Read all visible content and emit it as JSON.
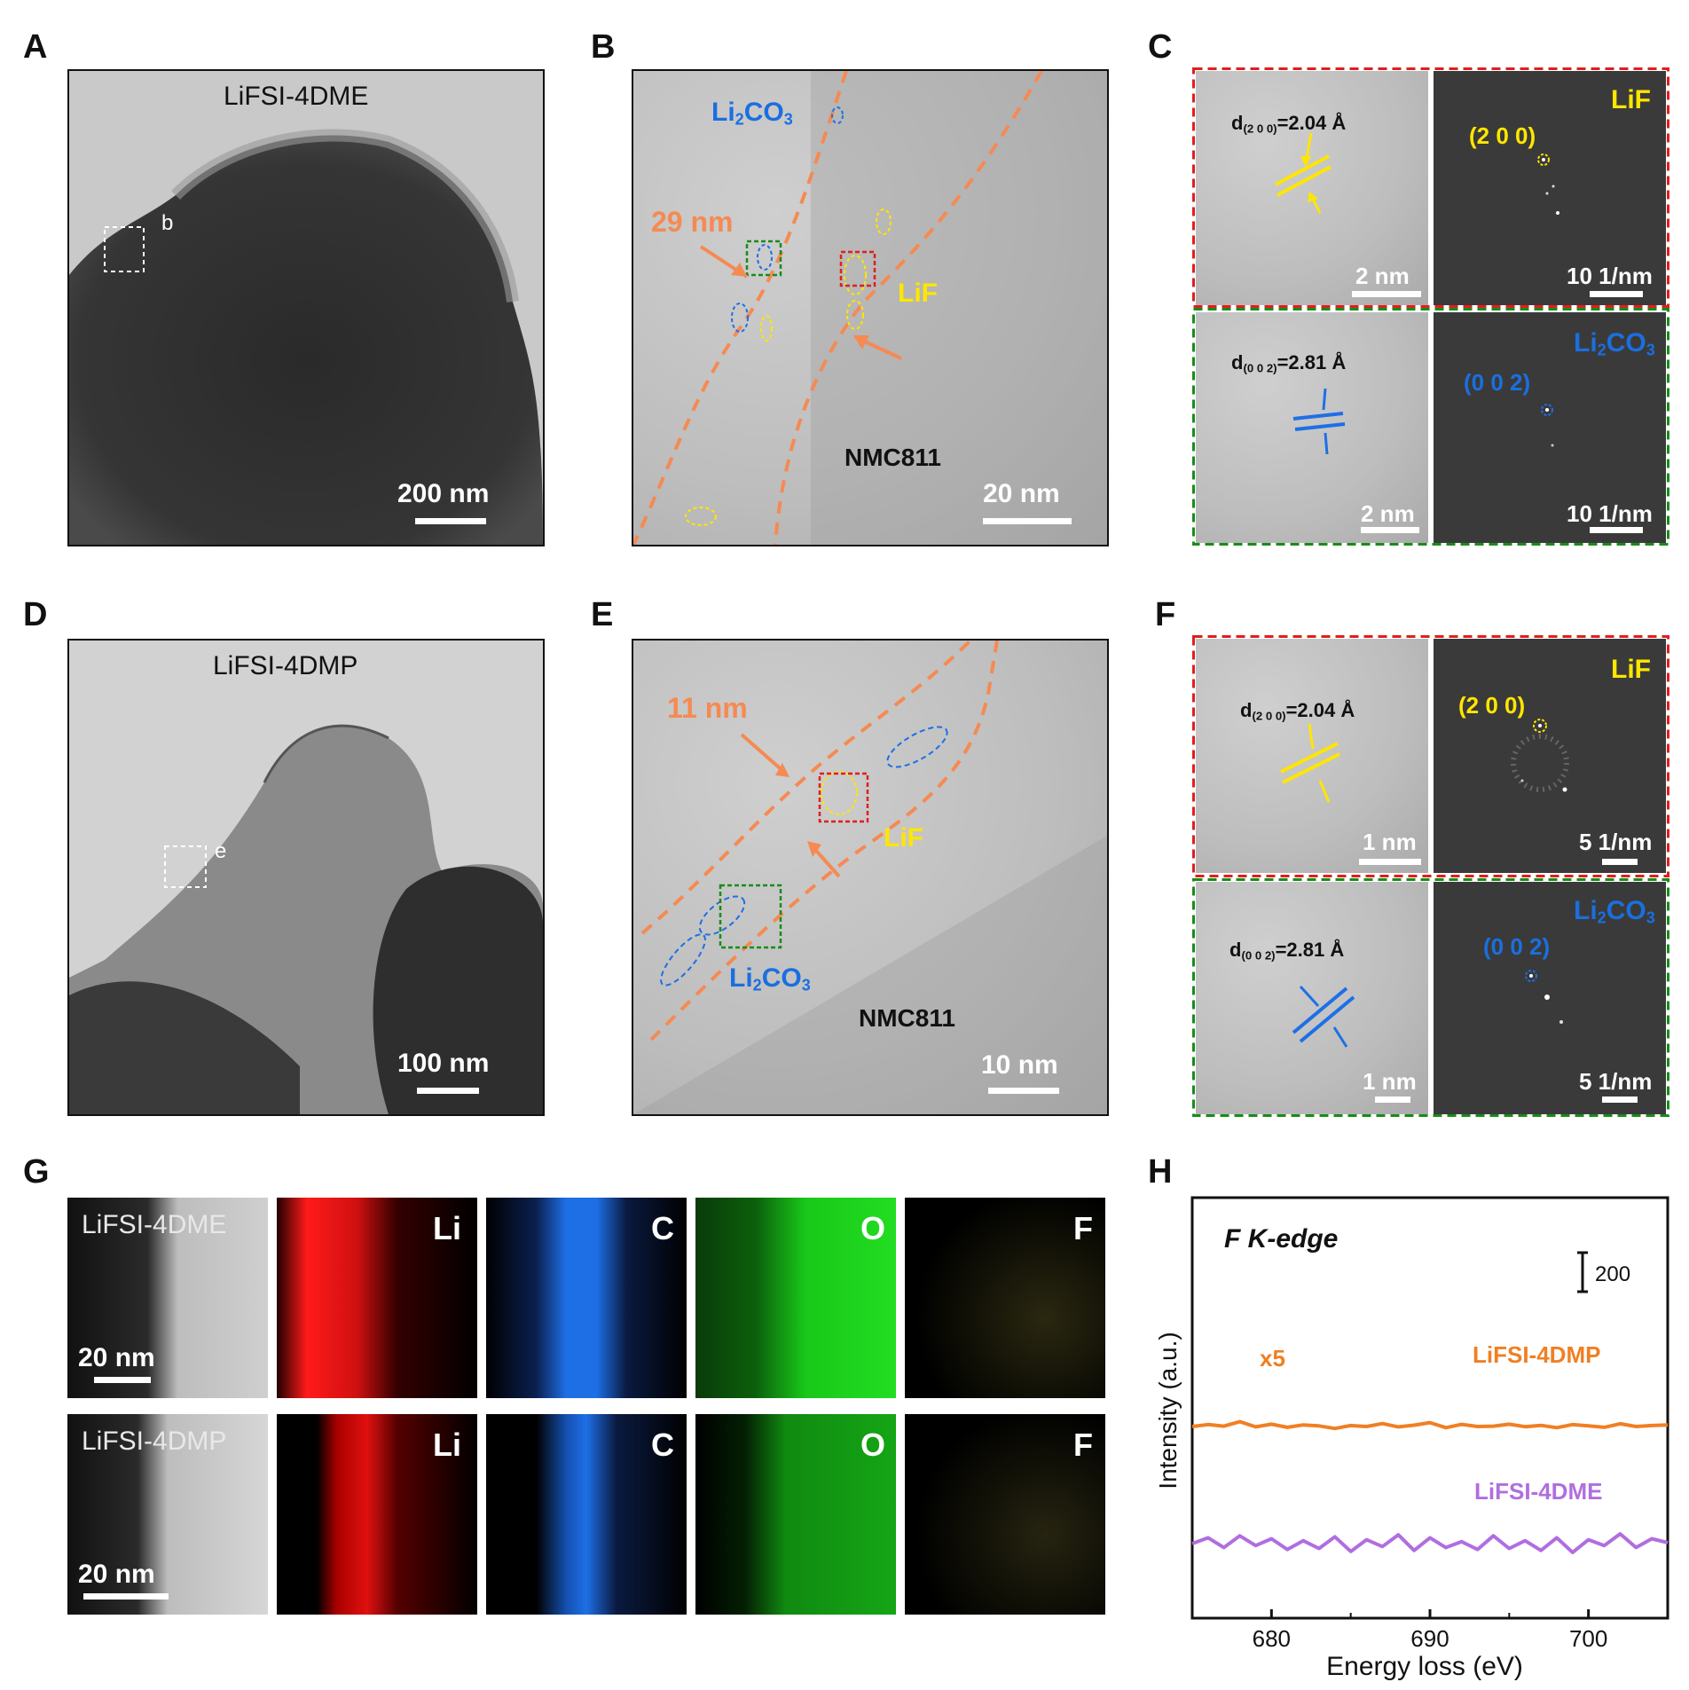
{
  "panels": {
    "A": {
      "label": "A",
      "title": "LiFSI-4DME",
      "box_label": "b",
      "scale": "200 nm"
    },
    "B": {
      "label": "B",
      "li2co3": "Li",
      "li2co3_sub": "2",
      "li2co3_tail": "CO",
      "li2co3_sub2": "3",
      "thickness": "29 nm",
      "lif": "LiF",
      "nmc": "NMC811",
      "scale": "20 nm"
    },
    "C": {
      "label": "C",
      "top_d": "d",
      "top_d_sub": "(2 0 0)",
      "top_d_val": "=2.04 Å",
      "top_scale": "2 nm",
      "top_fft_name": "LiF",
      "top_fft_idx": "(2 0 0)",
      "top_fft_scale": "10 1/nm",
      "bot_d": "d",
      "bot_d_sub": "(0 0 2)",
      "bot_d_val": "=2.81 Å",
      "bot_scale": "2 nm",
      "bot_fft_name": "Li",
      "bot_fft_sub": "2",
      "bot_fft_tail": "CO",
      "bot_fft_sub2": "3",
      "bot_fft_idx": "(0 0 2)",
      "bot_fft_scale": "10 1/nm"
    },
    "D": {
      "label": "D",
      "title": "LiFSI-4DMP",
      "box_label": "e",
      "scale": "100 nm"
    },
    "E": {
      "label": "E",
      "thickness": "11 nm",
      "lif": "LiF",
      "li2co3": "Li",
      "li2co3_sub": "2",
      "li2co3_tail": "CO",
      "li2co3_sub2": "3",
      "nmc": "NMC811",
      "scale": "10 nm"
    },
    "F": {
      "label": "F",
      "top_d": "d",
      "top_d_sub": "(2 0 0)",
      "top_d_val": "=2.04 Å",
      "top_scale": "1 nm",
      "top_fft_name": "LiF",
      "top_fft_idx": "(2 0 0)",
      "top_fft_scale": "5 1/nm",
      "bot_d": "d",
      "bot_d_sub": "(0 0 2)",
      "bot_d_val": "=2.81 Å",
      "bot_scale": "1 nm",
      "bot_fft_name": "Li",
      "bot_fft_sub": "2",
      "bot_fft_tail": "CO",
      "bot_fft_sub2": "3",
      "bot_fft_idx": "(0 0 2)",
      "bot_fft_scale": "5 1/nm"
    },
    "G": {
      "label": "G",
      "row1_title": "LiFSI-4DME",
      "row1_scale": "20 nm",
      "row2_title": "LiFSI-4DMP",
      "row2_scale": "20 nm",
      "elements": [
        "Li",
        "C",
        "O",
        "F"
      ],
      "element_colors": {
        "Li": "#ff1a1a",
        "C": "#1e6fe6",
        "O": "#19c819",
        "F": "#d6c817"
      }
    },
    "H": {
      "label": "H"
    }
  },
  "chart_data": {
    "type": "line",
    "annotation": "F K-edge",
    "scale_bar": "200",
    "xlabel": "Energy loss (eV)",
    "ylabel": "Intensity (a.u.)",
    "xlim": [
      675,
      705
    ],
    "xticks": [
      680,
      690,
      700
    ],
    "series": [
      {
        "name": "LiFSI-4DMP",
        "color": "#f07f23",
        "multiplier_label": "x5",
        "offset": 600,
        "x": [
          675,
          676,
          677,
          678,
          679,
          680,
          681,
          682,
          683,
          684,
          685,
          686,
          687,
          688,
          689,
          690,
          691,
          692,
          693,
          694,
          695,
          696,
          697,
          698,
          699,
          700,
          701,
          702,
          703,
          704,
          705
        ],
        "y": [
          600,
          610,
          602,
          625,
          598,
          612,
          596,
          608,
          603,
          590,
          605,
          600,
          615,
          598,
          607,
          620,
          594,
          611,
          600,
          602,
          612,
          599,
          606,
          594,
          610,
          603,
          596,
          614,
          600,
          605,
          608
        ]
      },
      {
        "name": "LiFSI-4DME",
        "color": "#b06ee0",
        "offset": 0,
        "x": [
          675,
          676,
          677,
          678,
          679,
          680,
          681,
          682,
          683,
          684,
          685,
          686,
          687,
          688,
          689,
          690,
          691,
          692,
          693,
          694,
          695,
          696,
          697,
          698,
          699,
          700,
          701,
          702,
          703,
          704,
          705
        ],
        "y": [
          0,
          30,
          -20,
          40,
          -10,
          25,
          -30,
          15,
          -25,
          35,
          -40,
          20,
          -15,
          45,
          -35,
          30,
          -20,
          10,
          -30,
          40,
          -25,
          15,
          -35,
          30,
          -45,
          20,
          -10,
          50,
          -20,
          25,
          5
        ]
      }
    ]
  }
}
